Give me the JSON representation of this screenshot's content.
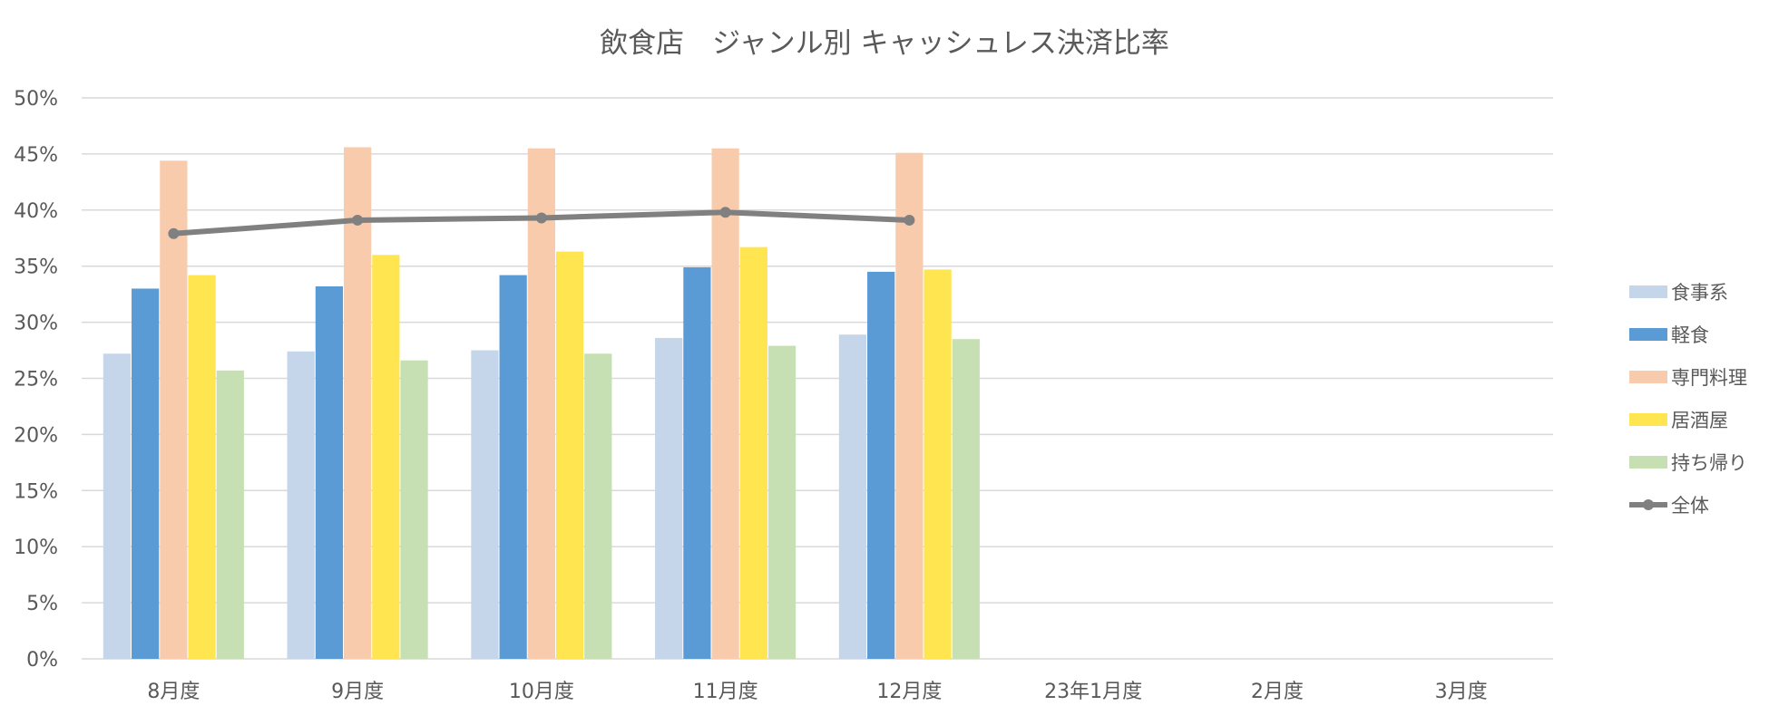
{
  "chart_data": {
    "type": "bar",
    "title": "飲食店　ジャンル別 キャッシュレス決済比率",
    "categories": [
      "8月度",
      "9月度",
      "10月度",
      "11月度",
      "12月度",
      "23年1月度",
      "2月度",
      "3月度"
    ],
    "ylim": [
      0,
      50
    ],
    "yticks": [
      "0%",
      "5%",
      "10%",
      "15%",
      "20%",
      "25%",
      "30%",
      "35%",
      "40%",
      "45%",
      "50%"
    ],
    "grid": true,
    "legend_position": "right",
    "series": [
      {
        "name": "食事系",
        "type": "bar",
        "color": "#c5d5ea",
        "values": [
          27.2,
          27.4,
          27.5,
          28.6,
          28.9,
          null,
          null,
          null
        ]
      },
      {
        "name": "軽食",
        "type": "bar",
        "color": "#5b9bd5",
        "values": [
          33.0,
          33.2,
          34.2,
          34.9,
          34.5,
          null,
          null,
          null
        ]
      },
      {
        "name": "専門料理",
        "type": "bar",
        "color": "#f8cbad",
        "values": [
          44.4,
          45.6,
          45.5,
          45.5,
          45.1,
          null,
          null,
          null
        ]
      },
      {
        "name": "居酒屋",
        "type": "bar",
        "color": "#ffe54f",
        "values": [
          34.2,
          36.0,
          36.3,
          36.7,
          34.7,
          null,
          null,
          null
        ]
      },
      {
        "name": "持ち帰り",
        "type": "bar",
        "color": "#c6e0b4",
        "values": [
          25.7,
          26.6,
          27.2,
          27.9,
          28.5,
          null,
          null,
          null
        ]
      },
      {
        "name": "全体",
        "type": "line",
        "color": "#808080",
        "values": [
          37.9,
          39.1,
          39.3,
          39.8,
          39.1,
          null,
          null,
          null
        ]
      }
    ]
  }
}
